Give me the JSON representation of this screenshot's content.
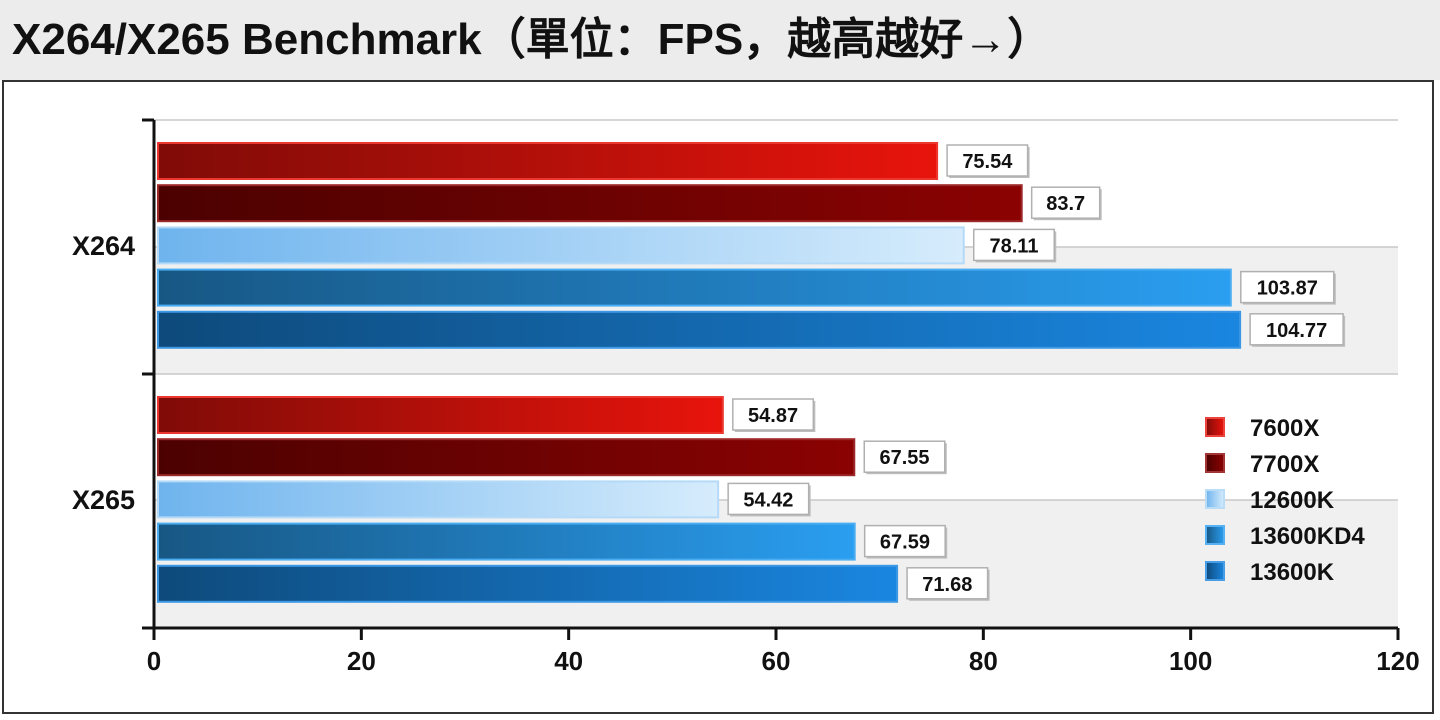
{
  "title": "X264/X265 Benchmark（單位：FPS，越高越好→）",
  "chart_data": {
    "type": "bar",
    "orientation": "horizontal",
    "title": "X264/X265 Benchmark（單位：FPS，越高越好→）",
    "categories": [
      "X264",
      "X265"
    ],
    "series": [
      {
        "name": "7600X",
        "values": [
          75.54,
          54.87
        ],
        "color": "#e8140c"
      },
      {
        "name": "7700X",
        "values": [
          83.7,
          67.55
        ],
        "color": "#8b0202"
      },
      {
        "name": "12600K",
        "values": [
          78.11,
          54.42
        ],
        "color": "#a8d4f5"
      },
      {
        "name": "13600KD4",
        "values": [
          103.87,
          67.59
        ],
        "color": "#2a9ef0"
      },
      {
        "name": "13600K",
        "values": [
          104.77,
          71.68
        ],
        "color": "#1a86e0"
      }
    ],
    "xlim": [
      0,
      120
    ],
    "xticks": [
      0,
      20,
      40,
      60,
      80,
      100,
      120
    ],
    "grid": true,
    "legend": "right"
  }
}
